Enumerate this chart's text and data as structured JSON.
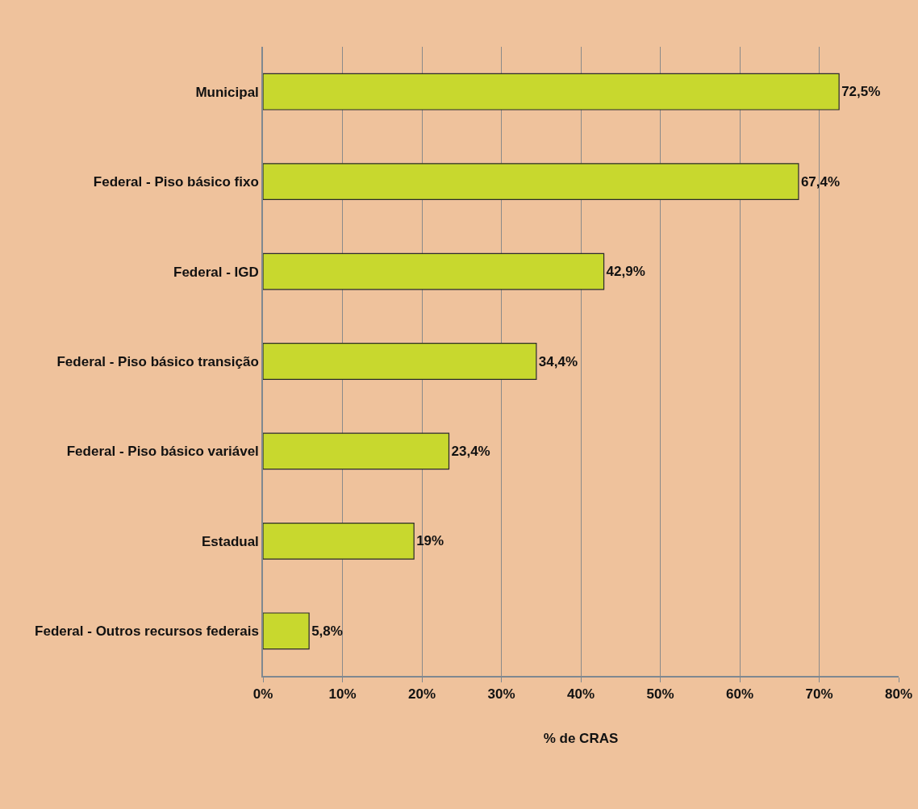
{
  "chart_data": {
    "type": "bar",
    "orientation": "horizontal",
    "xlabel": "% de CRAS",
    "categories": [
      "Municipal",
      "Federal - Piso básico fixo",
      "Federal - IGD",
      "Federal - Piso básico transição",
      "Federal - Piso básico variável",
      "Estadual",
      "Federal - Outros recursos federais"
    ],
    "values": [
      72.5,
      67.4,
      42.9,
      34.4,
      23.4,
      19,
      5.8
    ],
    "value_labels": [
      "72,5%",
      "67,4%",
      "42,9%",
      "34,4%",
      "23,4%",
      "19%",
      "5,8%"
    ],
    "color": "#c8d82e",
    "xlim": [
      0,
      80
    ],
    "xticks": [
      {
        "value": 0,
        "label": "0%"
      },
      {
        "value": 10,
        "label": "10%"
      },
      {
        "value": 20,
        "label": "20%"
      },
      {
        "value": 30,
        "label": "30%"
      },
      {
        "value": 40,
        "label": "40%"
      },
      {
        "value": 50,
        "label": "50%"
      },
      {
        "value": 60,
        "label": "60%"
      },
      {
        "value": 70,
        "label": "70%"
      },
      {
        "value": 80,
        "label": "80%"
      }
    ],
    "grid": "x"
  }
}
